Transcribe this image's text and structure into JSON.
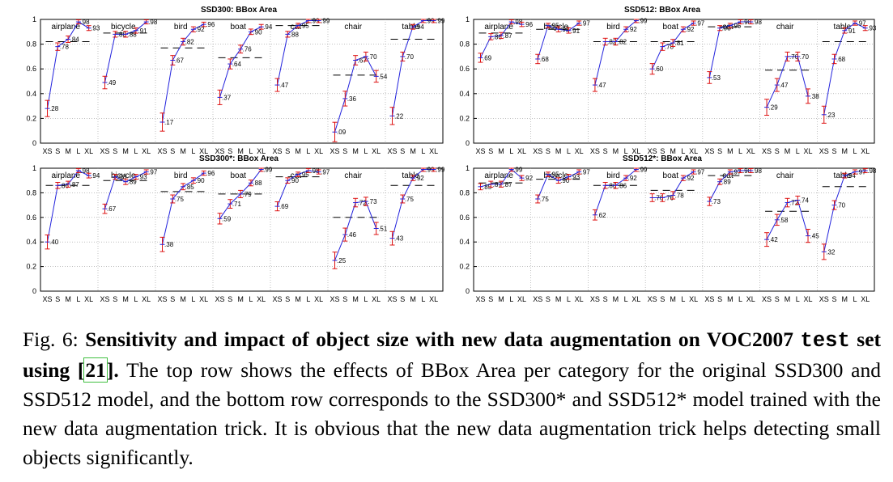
{
  "caption": {
    "fig_label": "Fig. 6:",
    "bold_before_code": "Sensitivity and impact of object size with new data augmentation on VOC2007",
    "code_word": "test",
    "bold_after_code": "set using",
    "ref": "21",
    "bold_end": ".",
    "rest": "The top row shows the effects of BBox Area per category for the original SSD300 and SSD512 model, and the bottom row corresponds to the SSD300* and SSD512* model trained with the new data augmentation trick. It is obvious that the new data augmentation trick helps detecting small objects significantly."
  },
  "chart_data": [
    {
      "type": "line",
      "title": "SSD300: BBox Area",
      "ylim": [
        0,
        1
      ],
      "yticks": [
        "0",
        "0.2",
        "0.4",
        "0.6",
        "0.8",
        "1"
      ],
      "size_labels": [
        "XS",
        "S",
        "M",
        "L",
        "XL"
      ],
      "grid": "dotted",
      "categories": [
        {
          "name": "airplane",
          "values": [
            0.28,
            0.78,
            0.84,
            0.98,
            0.93
          ],
          "avg": 0.82
        },
        {
          "name": "bicycle",
          "values": [
            0.49,
            0.88,
            0.88,
            0.91,
            0.98
          ],
          "avg": 0.89
        },
        {
          "name": "bird",
          "values": [
            0.17,
            0.67,
            0.82,
            0.92,
            0.96
          ],
          "avg": 0.77
        },
        {
          "name": "boat",
          "values": [
            0.37,
            0.64,
            0.76,
            0.9,
            0.94
          ],
          "avg": 0.69
        },
        {
          "name": "cat",
          "values": [
            0.47,
            0.88,
            0.95,
            0.99,
            0.99
          ],
          "avg": 0.95
        },
        {
          "name": "chair",
          "values": [
            0.09,
            0.36,
            0.67,
            0.7,
            0.54
          ],
          "avg": 0.55
        },
        {
          "name": "table",
          "values": [
            0.22,
            0.7,
            0.94,
            0.99,
            0.99
          ],
          "avg": 0.84
        }
      ]
    },
    {
      "type": "line",
      "title": "SSD512: BBox Area",
      "ylim": [
        0,
        1
      ],
      "yticks": [
        "0",
        "0.2",
        "0.4",
        "0.6",
        "0.8",
        "1"
      ],
      "size_labels": [
        "XS",
        "S",
        "M",
        "L",
        "XL"
      ],
      "grid": "dotted",
      "categories": [
        {
          "name": "airplane",
          "values": [
            0.69,
            0.86,
            0.87,
            0.98,
            0.96
          ],
          "avg": 0.89
        },
        {
          "name": "bicycle",
          "values": [
            0.68,
            0.95,
            0.92,
            0.91,
            0.97
          ],
          "avg": 0.92
        },
        {
          "name": "bird",
          "values": [
            0.47,
            0.82,
            0.82,
            0.92,
            0.99
          ],
          "avg": 0.82
        },
        {
          "name": "boat",
          "values": [
            0.6,
            0.78,
            0.81,
            0.92,
            0.97
          ],
          "avg": 0.82
        },
        {
          "name": "cat",
          "values": [
            0.53,
            0.93,
            0.95,
            0.98,
            0.98
          ],
          "avg": 0.94
        },
        {
          "name": "chair",
          "values": [
            0.29,
            0.47,
            0.7,
            0.7,
            0.38
          ],
          "avg": 0.59
        },
        {
          "name": "table",
          "values": [
            0.23,
            0.68,
            0.91,
            0.97,
            0.93
          ],
          "avg": 0.82
        }
      ]
    },
    {
      "type": "line",
      "title": "SSD300*: BBox Area",
      "ylim": [
        0,
        1
      ],
      "yticks": [
        "0",
        "0.2",
        "0.4",
        "0.6",
        "0.8",
        "1"
      ],
      "size_labels": [
        "XS",
        "S",
        "M",
        "L",
        "XL"
      ],
      "grid": "dotted",
      "categories": [
        {
          "name": "airplane",
          "values": [
            0.4,
            0.86,
            0.87,
            0.98,
            0.94
          ],
          "avg": 0.86
        },
        {
          "name": "bicycle",
          "values": [
            0.67,
            0.93,
            0.89,
            0.93,
            0.97
          ],
          "avg": 0.9
        },
        {
          "name": "bird",
          "values": [
            0.38,
            0.75,
            0.85,
            0.9,
            0.96
          ],
          "avg": 0.81
        },
        {
          "name": "boat",
          "values": [
            0.59,
            0.71,
            0.79,
            0.88,
            0.99
          ],
          "avg": 0.79
        },
        {
          "name": "cat",
          "values": [
            0.69,
            0.9,
            0.95,
            0.98,
            0.97
          ],
          "avg": 0.93
        },
        {
          "name": "chair",
          "values": [
            0.25,
            0.46,
            0.72,
            0.73,
            0.51
          ],
          "avg": 0.6
        },
        {
          "name": "table",
          "values": [
            0.43,
            0.75,
            0.92,
            0.99,
            0.99
          ],
          "avg": 0.86
        }
      ]
    },
    {
      "type": "line",
      "title": "SSD512*: BBox Area",
      "ylim": [
        0,
        1
      ],
      "yticks": [
        "0",
        "0.2",
        "0.4",
        "0.6",
        "0.8",
        "1"
      ],
      "size_labels": [
        "XS",
        "S",
        "M",
        "L",
        "XL"
      ],
      "grid": "dotted",
      "categories": [
        {
          "name": "airplane",
          "values": [
            0.85,
            0.87,
            0.87,
            0.99,
            0.92
          ],
          "avg": 0.88
        },
        {
          "name": "bicycle",
          "values": [
            0.75,
            0.95,
            0.9,
            0.93,
            0.97
          ],
          "avg": 0.91
        },
        {
          "name": "bird",
          "values": [
            0.62,
            0.86,
            0.86,
            0.92,
            0.99
          ],
          "avg": 0.86
        },
        {
          "name": "boat",
          "values": [
            0.76,
            0.76,
            0.78,
            0.92,
            0.97
          ],
          "avg": 0.82
        },
        {
          "name": "cat",
          "values": [
            0.73,
            0.89,
            0.97,
            0.98,
            0.98
          ],
          "avg": 0.94
        },
        {
          "name": "chair",
          "values": [
            0.42,
            0.58,
            0.72,
            0.74,
            0.45
          ],
          "avg": 0.65
        },
        {
          "name": "table",
          "values": [
            0.32,
            0.7,
            0.94,
            0.97,
            0.98
          ],
          "avg": 0.85
        }
      ]
    }
  ],
  "colors": {
    "line": "#2222dd",
    "errorbar": "#dd1111",
    "avg": "#000000",
    "axis": "#000000",
    "grid": "#999999"
  }
}
